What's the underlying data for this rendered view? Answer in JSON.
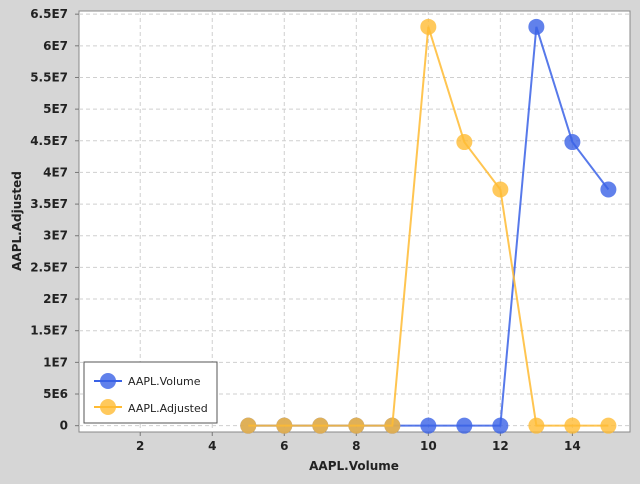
{
  "chart_data": {
    "type": "line",
    "title": "",
    "xlabel": "AAPL.Volume",
    "ylabel": "AAPL.Adjusted",
    "xlim": [
      0.3,
      15.6
    ],
    "ylim": [
      -1000000,
      65500000
    ],
    "x_ticks": [
      2,
      4,
      6,
      8,
      10,
      12,
      14
    ],
    "x_tick_labels": [
      "2",
      "4",
      "6",
      "8",
      "10",
      "12",
      "14"
    ],
    "y_ticks": [
      0,
      5000000,
      10000000,
      15000000,
      20000000,
      25000000,
      30000000,
      35000000,
      40000000,
      45000000,
      50000000,
      55000000,
      60000000,
      65000000
    ],
    "y_tick_labels": [
      "0",
      "5E6",
      "1E7",
      "1.5E7",
      "2E7",
      "2.5E7",
      "3E7",
      "3.5E7",
      "4E7",
      "4.5E7",
      "5E7",
      "5.5E7",
      "6E7",
      "6.5E7"
    ],
    "grid": true,
    "legend_position": "bottom-left",
    "series": [
      {
        "name": "AAPL.Volume",
        "color": "#3a62e6",
        "x": [
          5,
          6,
          7,
          8,
          9,
          10,
          11,
          12,
          13,
          14,
          15
        ],
        "y": [
          0,
          0,
          0,
          0,
          0,
          0,
          0,
          0,
          63000000,
          44800000,
          37300000
        ]
      },
      {
        "name": "AAPL.Adjusted",
        "color": "#ffbb33",
        "x": [
          5,
          6,
          7,
          8,
          9,
          10,
          11,
          12,
          13,
          14,
          15
        ],
        "y": [
          0,
          0,
          0,
          0,
          0,
          63000000,
          44800000,
          37300000,
          0,
          0,
          0
        ]
      }
    ]
  }
}
